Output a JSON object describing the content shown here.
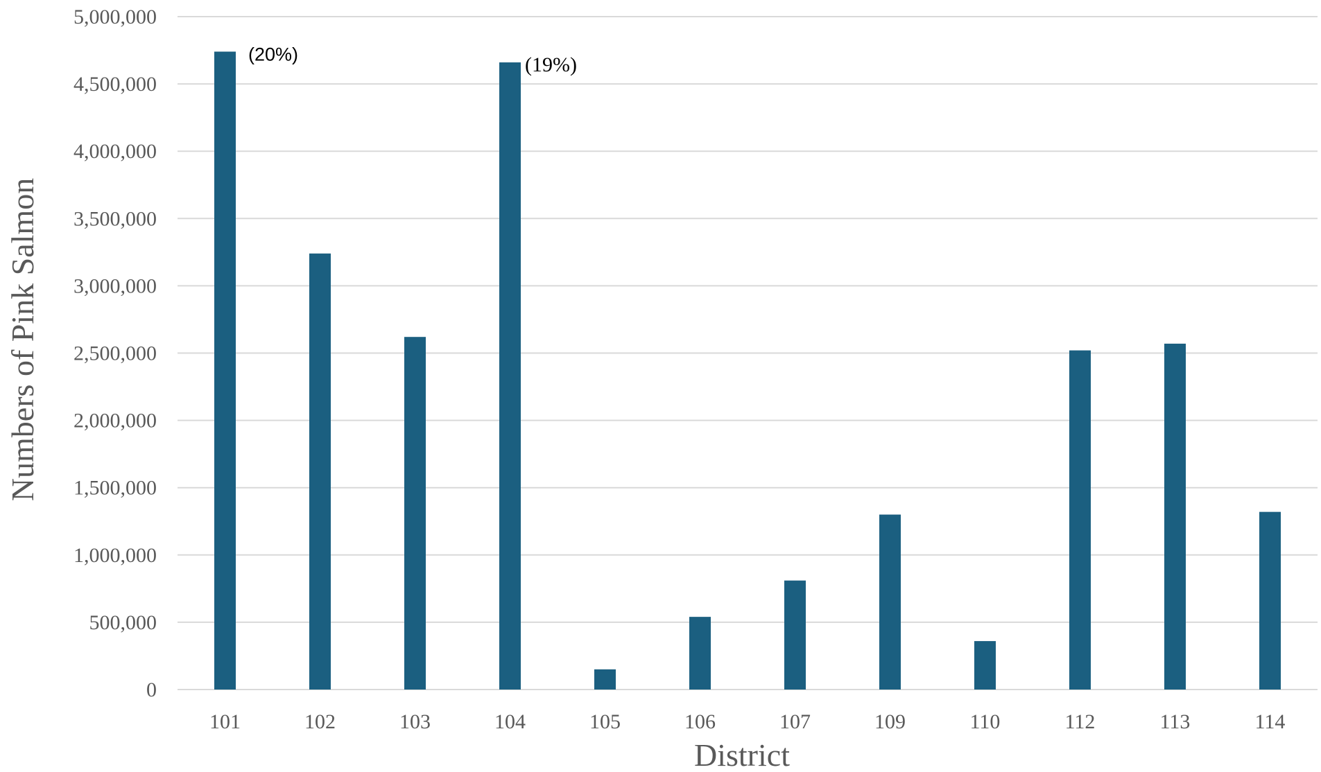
{
  "chart_data": {
    "type": "bar",
    "title": "",
    "xlabel": "District",
    "ylabel": "Numbers of Pink Salmon",
    "categories": [
      "101",
      "102",
      "103",
      "104",
      "105",
      "106",
      "107",
      "109",
      "110",
      "112",
      "113",
      "114"
    ],
    "series": [
      {
        "values": [
          4740000,
          3240000,
          2620000,
          4660000,
          150000,
          540000,
          810000,
          1300000,
          360000,
          2520000,
          2570000,
          1320000
        ]
      }
    ],
    "ylim": [
      0,
      5000000
    ],
    "yticks": [
      0,
      500000,
      1000000,
      1500000,
      2000000,
      2500000,
      3000000,
      3500000,
      4000000,
      4500000,
      5000000
    ],
    "ytick_labels": [
      "0",
      "500,000",
      "1,000,000",
      "1,500,000",
      "2,000,000",
      "2,500,000",
      "3,000,000",
      "3,500,000",
      "4,000,000",
      "4,500,000",
      "5,000,000"
    ],
    "annotations": [
      {
        "category": "101",
        "text": "(20%)"
      },
      {
        "category": "104",
        "text": "(19%)"
      }
    ],
    "grid": true,
    "legend": "none",
    "colors": {
      "bar": "#1b5f80",
      "grid": "#d9d9d9",
      "text": "#595959"
    }
  }
}
